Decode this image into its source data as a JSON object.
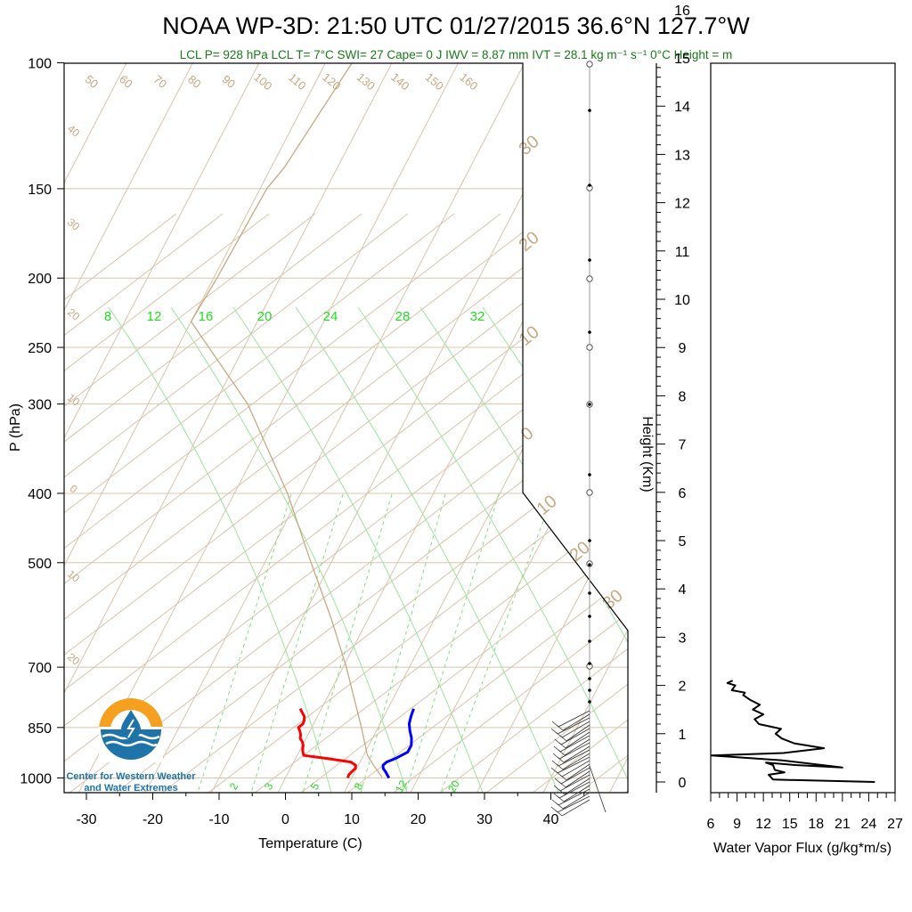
{
  "title": "NOAA WP-3D: 21:50 UTC 01/27/2015  36.6°N 127.7°W",
  "subtitle": "LCL P= 928 hPa  LCL T= 7°C  SWI= 27  Cape= 0 J  IWV = 8.87 mm  IVT = 28.1 kg m⁻¹ s⁻¹  0°C Height =  m",
  "logo": {
    "line1": "Center for Western Weather",
    "line2": "and Water Extremes"
  },
  "colors": {
    "temperature": "#ff0000",
    "dewpoint": "#0000ff",
    "isotherm": "#c8a882",
    "mixing_ratio": "#22dd22",
    "flux": "#000000"
  },
  "chart_data": [
    {
      "type": "line",
      "chart": "skew-t",
      "xlabel": "Temperature (C)",
      "ylabel": "P (hPa)",
      "y_scale": "log",
      "ylim": [
        1050,
        100
      ],
      "x_ticks": [
        "-30",
        "-20",
        "-10",
        "0",
        "10",
        "20",
        "30",
        "40"
      ],
      "y_ticks": [
        "100",
        "150",
        "200",
        "250",
        "300",
        "400",
        "500",
        "700",
        "850",
        "1000"
      ],
      "isotherm_labels": [
        "50",
        "60",
        "70",
        "80",
        "90",
        "100",
        "110",
        "120",
        "130",
        "140",
        "150",
        "160"
      ],
      "left_labels": [
        "40",
        "30",
        "20",
        "10",
        "0",
        "10",
        "20"
      ],
      "right_labels": [
        "30",
        "20",
        "10",
        "0",
        "10",
        "20",
        "30"
      ],
      "mixing_ratio_top_labels": [
        "8",
        "12",
        "16",
        "20",
        "24",
        "28",
        "32"
      ],
      "mixing_ratio_bottom_labels": [
        "2",
        "3",
        "5",
        "8",
        "12",
        "20"
      ],
      "series": [
        {
          "key": "temperature",
          "p": [
            800,
            810,
            820,
            830,
            840,
            850,
            860,
            870,
            880,
            890,
            900,
            910,
            920,
            930,
            940,
            950,
            960,
            970,
            980,
            990,
            1000
          ],
          "t": [
            -3.2,
            -2.6,
            -2.0,
            -1.7,
            -1.6,
            -2.0,
            -1.5,
            -1.1,
            -0.9,
            -0.3,
            0.1,
            0.3,
            0.6,
            1.0,
            5.0,
            8.6,
            9.6,
            9.8,
            9.5,
            9.3,
            9.4
          ]
        },
        {
          "key": "dewpoint",
          "p": [
            800,
            820,
            840,
            860,
            880,
            900,
            920,
            940,
            950,
            960,
            970,
            980,
            990,
            1000
          ],
          "t": [
            13.9,
            14.1,
            14.4,
            15.1,
            15.9,
            16.4,
            16.4,
            15.0,
            14.0,
            13.7,
            14.0,
            14.6,
            15.1,
            15.6
          ]
        },
        {
          "key": "parcel",
          "p": [
            998,
            960,
            928,
            850,
            700,
            600,
            500,
            400,
            300,
            230,
            200,
            150,
            140,
            100
          ],
          "t": [
            14.5,
            12.3,
            10.5,
            7.5,
            0.5,
            -5.5,
            -13.0,
            -22.0,
            -35.0,
            -50.0,
            -49.5,
            -49.0,
            -48.0,
            -46.0
          ]
        }
      ],
      "wind_barbs": "row of wind barbs along the right edge, 0-2 km"
    },
    {
      "type": "line",
      "xlabel": "Water Vapor Flux (g/kg*m/s)",
      "ylabel": "Height (Km)",
      "xlim": [
        6,
        27
      ],
      "ylim": [
        -0.3,
        16.5
      ],
      "x_ticks": [
        "6",
        "9",
        "12",
        "15",
        "18",
        "21",
        "24",
        "27"
      ],
      "y_ticks": [
        "0",
        "1",
        "2",
        "3",
        "4",
        "5",
        "6",
        "7",
        "8",
        "9",
        "10",
        "11",
        "12",
        "13",
        "14",
        "15",
        "16"
      ],
      "x": [
        24.7,
        13.1,
        12.6,
        14.4,
        13.3,
        13.1,
        12.3,
        15.6,
        21.0,
        14.0,
        6.1,
        14.3,
        18.9,
        15.5,
        14.1,
        13.4,
        14.0,
        11.5,
        11.0,
        12.0,
        10.8,
        11.6,
        10.5,
        9.7,
        9.9,
        8.4,
        8.8,
        7.9,
        8.5
      ],
      "y": [
        0.0,
        0.05,
        0.15,
        0.2,
        0.25,
        0.35,
        0.4,
        0.35,
        0.3,
        0.45,
        0.55,
        0.6,
        0.7,
        0.8,
        0.9,
        1.0,
        1.1,
        1.2,
        1.3,
        1.4,
        1.5,
        1.6,
        1.7,
        1.8,
        1.85,
        1.9,
        2.0,
        2.05,
        2.1
      ]
    }
  ]
}
